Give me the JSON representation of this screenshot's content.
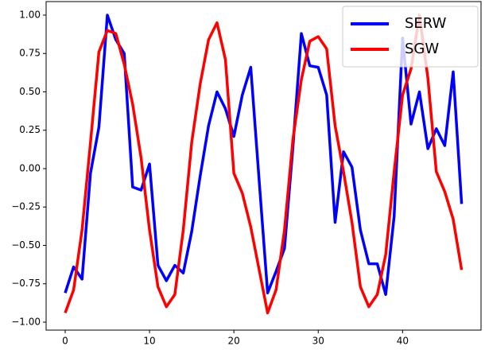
{
  "chart_data": {
    "type": "line",
    "x": [
      0,
      1,
      2,
      3,
      4,
      5,
      6,
      7,
      8,
      9,
      10,
      11,
      12,
      13,
      14,
      15,
      16,
      17,
      18,
      19,
      20,
      21,
      22,
      23,
      24,
      25,
      26,
      27,
      28,
      29,
      30,
      31,
      32,
      33,
      34,
      35,
      36,
      37,
      38,
      39,
      40,
      41,
      42,
      43,
      44,
      45,
      46,
      47
    ],
    "series": [
      {
        "name": "SERW",
        "color": "#0000ff",
        "values": [
          -0.81,
          -0.64,
          -0.72,
          -0.03,
          0.27,
          1.0,
          0.84,
          0.75,
          -0.12,
          -0.14,
          0.03,
          -0.63,
          -0.73,
          -0.63,
          -0.68,
          -0.41,
          -0.05,
          0.28,
          0.5,
          0.39,
          0.21,
          0.48,
          0.66,
          -0.08,
          -0.81,
          -0.67,
          -0.52,
          0.14,
          0.88,
          0.67,
          0.66,
          0.48,
          -0.35,
          0.11,
          0.01,
          -0.4,
          -0.62,
          -0.62,
          -0.82,
          -0.31,
          0.85,
          0.29,
          0.5,
          0.13,
          0.26,
          0.15,
          0.63,
          -0.23
        ]
      },
      {
        "name": "SGW",
        "color": "#ff0000",
        "values": [
          -0.94,
          -0.79,
          -0.4,
          0.17,
          0.76,
          0.9,
          0.88,
          0.68,
          0.42,
          0.07,
          -0.4,
          -0.77,
          -0.9,
          -0.82,
          -0.4,
          0.17,
          0.55,
          0.84,
          0.95,
          0.71,
          -0.03,
          -0.16,
          -0.38,
          -0.66,
          -0.94,
          -0.79,
          -0.4,
          0.19,
          0.58,
          0.83,
          0.86,
          0.78,
          0.28,
          -0.02,
          -0.35,
          -0.77,
          -0.9,
          -0.82,
          -0.56,
          -0.02,
          0.48,
          0.65,
          1.0,
          0.59,
          -0.02,
          -0.15,
          -0.33,
          -0.66
        ]
      }
    ],
    "xlim": [
      -2.26,
      49.3
    ],
    "ylim": [
      -1.052,
      1.088
    ],
    "xticks": [
      0,
      10,
      20,
      30,
      40
    ],
    "yticks": [
      {
        "value": -1,
        "label": "−1.00"
      },
      {
        "value": -0.75,
        "label": "−0.75"
      },
      {
        "value": -0.5,
        "label": "−0.50"
      },
      {
        "value": -0.25,
        "label": "−0.25"
      },
      {
        "value": 0,
        "label": "0.00"
      },
      {
        "value": 0.25,
        "label": "0.25"
      },
      {
        "value": 0.5,
        "label": "0.50"
      },
      {
        "value": 0.75,
        "label": "0.75"
      },
      {
        "value": 1,
        "label": "1.00"
      }
    ],
    "legend": "upper right"
  }
}
